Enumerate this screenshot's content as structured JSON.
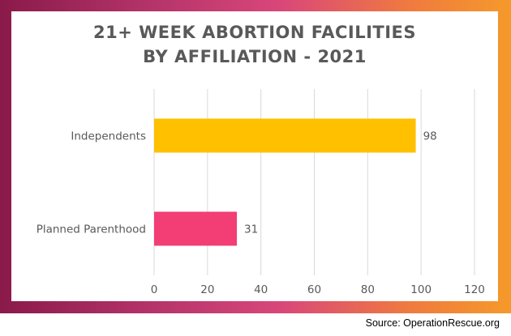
{
  "chart_data": {
    "type": "bar",
    "orientation": "horizontal",
    "title_lines": [
      "21+ WEEK ABORTION FACILITIES",
      "BY AFFILIATION - 2021"
    ],
    "categories": [
      "Independents",
      "Planned Parenthood"
    ],
    "values": [
      98,
      31
    ],
    "data_labels": [
      "98",
      "31"
    ],
    "bar_colors": [
      "#FFC000",
      "#F23D75"
    ],
    "xlim": [
      0,
      120
    ],
    "x_ticks": [
      0,
      20,
      40,
      60,
      80,
      100,
      120
    ],
    "x_tick_labels": [
      "0",
      "20",
      "40",
      "60",
      "80",
      "100",
      "120"
    ],
    "grid": true,
    "legend": "none"
  },
  "source_text": "Source: OperationRescue.org",
  "colors": {
    "gridline": "#d9d9d9",
    "axis_text": "#595959",
    "title_text": "#595959"
  }
}
